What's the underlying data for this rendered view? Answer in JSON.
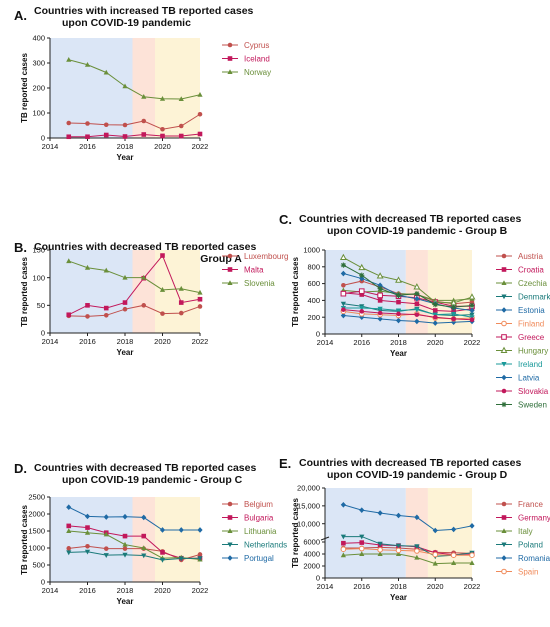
{
  "chart_data": [
    {
      "type": "line",
      "panel_label": "A.",
      "title_lines": [
        "Countries with increased TB reported cases",
        "upon COVID-19 pandemic"
      ],
      "xlabel": "Year",
      "ylabel": "TB reported cases",
      "xlim": [
        2014,
        2022
      ],
      "ylim": [
        0,
        400
      ],
      "xticks": [
        "2014",
        "2016",
        "2018",
        "2020",
        "2022"
      ],
      "yticks": [
        "0",
        "100",
        "200",
        "300",
        "400"
      ],
      "x": [
        2015,
        2016,
        2017,
        2018,
        2019,
        2020,
        2021,
        2022
      ],
      "series": [
        {
          "name": "Cyprus",
          "color": "#c0504d",
          "marker": "circle",
          "values": [
            60,
            58,
            53,
            52,
            68,
            35,
            48,
            95
          ]
        },
        {
          "name": "Iceland",
          "color": "#c2185b",
          "marker": "square",
          "values": [
            5,
            5,
            12,
            6,
            14,
            8,
            8,
            16
          ]
        },
        {
          "name": "Norway",
          "color": "#6a8f3a",
          "marker": "triangle",
          "values": [
            313,
            293,
            262,
            207,
            165,
            157,
            156,
            173
          ]
        }
      ],
      "legend": "right",
      "grid": false
    },
    {
      "type": "line",
      "panel_label": "B.",
      "title_lines": [
        "Countries with decreased TB reported cases",
        "upon COVID-19 pandemic - Group A"
      ],
      "xlabel": "Year",
      "ylabel": "TB reported cases",
      "xlim": [
        2014,
        2022
      ],
      "ylim": [
        0,
        150
      ],
      "xticks": [
        "2014",
        "2016",
        "2018",
        "2020",
        "2022"
      ],
      "yticks": [
        "0",
        "50",
        "100",
        "150"
      ],
      "x": [
        2015,
        2016,
        2017,
        2018,
        2019,
        2020,
        2021,
        2022
      ],
      "series": [
        {
          "name": "Luxembourg",
          "color": "#c0504d",
          "marker": "circle",
          "values": [
            31,
            30,
            32,
            43,
            50,
            35,
            36,
            48
          ]
        },
        {
          "name": "Malta",
          "color": "#c2185b",
          "marker": "square",
          "values": [
            33,
            50,
            45,
            55,
            99,
            140,
            55,
            61
          ]
        },
        {
          "name": "Slovenia",
          "color": "#6a8f3a",
          "marker": "triangle",
          "values": [
            130,
            118,
            113,
            100,
            100,
            78,
            80,
            73
          ]
        }
      ],
      "legend": "right",
      "grid": false
    },
    {
      "type": "line",
      "panel_label": "C.",
      "title_lines": [
        "Countries with decreased TB reported cases",
        "upon COVID-19 pandemic - Group B"
      ],
      "xlabel": "Year",
      "ylabel": "TB reported cases",
      "xlim": [
        2014,
        2022
      ],
      "ylim": [
        0,
        1000
      ],
      "xticks": [
        "2014",
        "2016",
        "2018",
        "2020",
        "2022"
      ],
      "yticks": [
        "0",
        "200",
        "400",
        "600",
        "800",
        "1000"
      ],
      "x": [
        2015,
        2016,
        2017,
        2018,
        2019,
        2020,
        2021,
        2022
      ],
      "series": [
        {
          "name": "Austria",
          "color": "#c0504d",
          "marker": "circle",
          "values": [
            580,
            630,
            560,
            480,
            470,
            390,
            360,
            380
          ]
        },
        {
          "name": "Croatia",
          "color": "#c2185b",
          "marker": "square",
          "values": [
            490,
            470,
            400,
            380,
            360,
            280,
            270,
            300
          ]
        },
        {
          "name": "Czechia",
          "color": "#6a8f3a",
          "marker": "triangle",
          "values": [
            520,
            500,
            510,
            480,
            470,
            400,
            400,
            420
          ]
        },
        {
          "name": "Denmark",
          "color": "#1a7a7a",
          "marker": "triangle-down",
          "values": [
            360,
            330,
            280,
            270,
            300,
            230,
            220,
            230
          ]
        },
        {
          "name": "Estonia",
          "color": "#1f6aa5",
          "marker": "diamond",
          "values": [
            220,
            200,
            180,
            160,
            150,
            130,
            140,
            150
          ]
        },
        {
          "name": "Finland",
          "color": "#f08a5a",
          "marker": "circle-open",
          "values": [
            270,
            240,
            230,
            220,
            240,
            190,
            180,
            190
          ]
        },
        {
          "name": "Greece",
          "color": "#c2185b",
          "marker": "square-open",
          "values": [
            480,
            510,
            460,
            450,
            430,
            380,
            330,
            330
          ]
        },
        {
          "name": "Hungary",
          "color": "#6a8f3a",
          "marker": "triangle-open",
          "values": [
            910,
            790,
            690,
            640,
            560,
            380,
            370,
            440
          ]
        },
        {
          "name": "Ireland",
          "color": "#1a9a9a",
          "marker": "triangle-down",
          "values": [
            310,
            310,
            300,
            280,
            290,
            230,
            240,
            200
          ]
        },
        {
          "name": "Latvia",
          "color": "#1f6aa5",
          "marker": "diamond",
          "values": [
            720,
            660,
            580,
            460,
            420,
            360,
            310,
            280
          ]
        },
        {
          "name": "Slovakia",
          "color": "#c2185b",
          "marker": "circle",
          "values": [
            290,
            270,
            250,
            240,
            230,
            200,
            180,
            170
          ]
        },
        {
          "name": "Sweden",
          "color": "#2f6f3a",
          "marker": "star",
          "values": [
            820,
            700,
            540,
            460,
            480,
            350,
            320,
            340
          ]
        }
      ],
      "legend": "right",
      "grid": false
    },
    {
      "type": "line",
      "panel_label": "D.",
      "title_lines": [
        "Countries with decreased TB reported cases",
        "upon COVID-19 pandemic - Group C"
      ],
      "xlabel": "Year",
      "ylabel": "TB reported cases",
      "xlim": [
        2014,
        2022
      ],
      "ylim": [
        0,
        2500
      ],
      "xticks": [
        "2014",
        "2016",
        "2018",
        "2020",
        "2022"
      ],
      "yticks": [
        "0",
        "500",
        "1000",
        "1500",
        "2000",
        "2500"
      ],
      "x": [
        2015,
        2016,
        2017,
        2018,
        2019,
        2020,
        2021,
        2022
      ],
      "series": [
        {
          "name": "Belgium",
          "color": "#c0504d",
          "marker": "circle",
          "values": [
            990,
            1050,
            980,
            980,
            980,
            900,
            650,
            810
          ]
        },
        {
          "name": "Bulgaria",
          "color": "#c2185b",
          "marker": "square",
          "values": [
            1650,
            1600,
            1450,
            1350,
            1350,
            870,
            700,
            700
          ]
        },
        {
          "name": "Lithuania",
          "color": "#6a8f3a",
          "marker": "triangle",
          "values": [
            1500,
            1450,
            1400,
            1100,
            1000,
            700,
            720,
            660
          ]
        },
        {
          "name": "Netherlands",
          "color": "#1a7a7a",
          "marker": "triangle-down",
          "values": [
            870,
            890,
            790,
            800,
            780,
            650,
            690,
            700
          ]
        },
        {
          "name": "Portugal",
          "color": "#1f6aa5",
          "marker": "diamond",
          "values": [
            2200,
            1930,
            1910,
            1920,
            1900,
            1530,
            1530,
            1530
          ]
        }
      ],
      "legend": "right",
      "grid": false
    },
    {
      "type": "line",
      "panel_label": "E.",
      "title_lines": [
        "Countries with decreased TB reported cases",
        "upon COVID-19 pandemic - Group D"
      ],
      "xlabel": "Year",
      "ylabel": "TB reported cases",
      "xlim": [
        2014,
        2022
      ],
      "ylim": [
        0,
        20000
      ],
      "axis_break": {
        "at": 6000,
        "lower_fraction": 0.4
      },
      "xticks": [
        "2014",
        "2016",
        "2018",
        "2020",
        "2022"
      ],
      "yticks_upper": [
        "10,000",
        "15,000",
        "20,000"
      ],
      "yticks_lower": [
        "0",
        "2000",
        "4000",
        "6000"
      ],
      "x": [
        2015,
        2016,
        2017,
        2018,
        2019,
        2020,
        2021,
        2022
      ],
      "series": [
        {
          "name": "France",
          "color": "#c0504d",
          "marker": "circle",
          "values": [
            5000,
            5000,
            5100,
            5000,
            4800,
            4300,
            4200,
            4100
          ]
        },
        {
          "name": "Germany",
          "color": "#c2185b",
          "marker": "square",
          "values": [
            5800,
            5900,
            5500,
            5400,
            5200,
            4200,
            3900,
            4000
          ]
        },
        {
          "name": "Italy",
          "color": "#6a8f3a",
          "marker": "triangle",
          "values": [
            3800,
            4000,
            4000,
            4000,
            3400,
            2400,
            2500,
            2500
          ]
        },
        {
          "name": "Poland",
          "color": "#1a7a7a",
          "marker": "triangle-down",
          "values": [
            6400,
            6400,
            5700,
            5400,
            5300,
            3600,
            3800,
            4200
          ]
        },
        {
          "name": "Romania",
          "color": "#1f6aa5",
          "marker": "diamond",
          "values": [
            15300,
            13800,
            13000,
            12300,
            11800,
            8100,
            8400,
            9400
          ]
        },
        {
          "name": "Spain",
          "color": "#f08a5a",
          "marker": "circle-open",
          "values": [
            4800,
            4900,
            4700,
            4600,
            4500,
            3900,
            3800,
            3800
          ]
        }
      ],
      "legend": "right",
      "grid": false
    }
  ],
  "shading": {
    "pre": {
      "from": 2014,
      "to": 2018.4,
      "color": "#dbe6f6"
    },
    "mid": {
      "from": 2018.4,
      "to": 2019.6,
      "color": "#fde3d8"
    },
    "post": {
      "from": 2019.6,
      "to": 2022,
      "color": "#fdf3d6"
    }
  }
}
